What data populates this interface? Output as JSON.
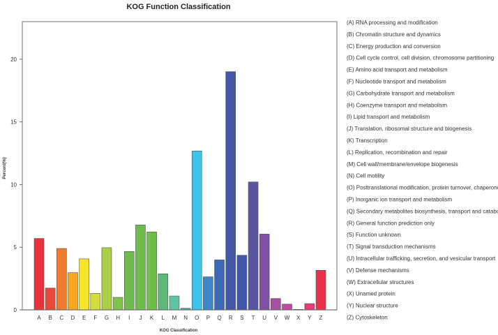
{
  "chart_data": {
    "type": "bar",
    "title": "KOG Function Classification",
    "xlabel": "KOG Classification",
    "ylabel": "Percent(%)",
    "ylim": [
      0,
      23
    ],
    "yticks": [
      0,
      5,
      10,
      15,
      20
    ],
    "grid": false,
    "legend_position": "right",
    "categories": [
      "A",
      "B",
      "C",
      "D",
      "E",
      "F",
      "G",
      "H",
      "I",
      "J",
      "K",
      "L",
      "M",
      "N",
      "O",
      "P",
      "Q",
      "R",
      "S",
      "T",
      "U",
      "V",
      "W",
      "X",
      "Y",
      "Z"
    ],
    "values": [
      5.7,
      1.74,
      4.9,
      2.97,
      4.07,
      1.32,
      4.96,
      1.0,
      4.66,
      6.78,
      6.22,
      2.88,
      1.11,
      0.13,
      12.68,
      2.64,
      3.99,
      19.01,
      4.36,
      10.21,
      6.05,
      0.91,
      0.46,
      0.04,
      0.5,
      3.16
    ],
    "colors": [
      "#e8333a",
      "#e84a3a",
      "#ef7a30",
      "#f5a623",
      "#f3e52c",
      "#d2dc3c",
      "#a8cf45",
      "#80c24a",
      "#6dbd4e",
      "#6cbd4b",
      "#6fbe48",
      "#5db87a",
      "#5ec3a5",
      "#4aaba8",
      "#3fc1ea",
      "#3f86c6",
      "#3c68b5",
      "#4357a5",
      "#4057a7",
      "#5a55a3",
      "#8150a2",
      "#a64ea0",
      "#c0489e",
      "#d23e8a",
      "#e63b78",
      "#e8334a"
    ],
    "legend": [
      "(A) RNA processing and modification",
      "(B) Chromatin structure and dynamics",
      "(C) Energy production and conversion",
      "(D) Cell cycle control, cell division, chromosome partitioning",
      "(E) Amino acid transport and metabolism",
      "(F) Nucleotide transport and metabolism",
      "(G) Carbohydrate transport and metabolism",
      "(H) Coenzyme transport and metabolism",
      "(I) Lipid transport and metabolism",
      "(J) Translation, ribosomal structure and biogenesis",
      "(K) Transcription",
      "(L) Replication, recombination and repair",
      "(M) Cell wall/membrane/envelope biogenesis",
      "(N) Cell motility",
      "(O) Posttranslational modification, protein turnover, chaperones",
      "(P) Inorganic ion transport and metabolism",
      "(Q) Secondary metabolites biosynthesis, transport and catabolism",
      "(R) General function prediction only",
      "(S) Function unknown",
      "(T) Signal transduction mechanisms",
      "(U) Intracellular trafficking, secretion, and vesicular transport",
      "(V) Defense mechanisms",
      "(W) Extracellular structures",
      "(X) Unamed protein",
      "(Y) Nuclear structure",
      "(Z) Cytoskeleton"
    ]
  }
}
